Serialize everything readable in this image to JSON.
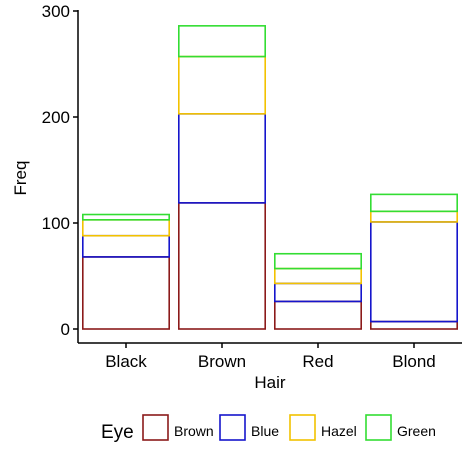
{
  "chart_data": {
    "type": "bar",
    "stacked": true,
    "bar_style": "outlined",
    "categories": [
      "Black",
      "Brown",
      "Red",
      "Blond"
    ],
    "series": [
      {
        "name": "Brown",
        "color": "#8B1A1A",
        "values": [
          68,
          119,
          26,
          7
        ]
      },
      {
        "name": "Blue",
        "color": "#1515CC",
        "values": [
          20,
          84,
          17,
          94
        ]
      },
      {
        "name": "Hazel",
        "color": "#F2C200",
        "values": [
          15,
          54,
          14,
          10
        ]
      },
      {
        "name": "Green",
        "color": "#33DD33",
        "values": [
          5,
          29,
          14,
          16
        ]
      }
    ],
    "xlabel": "Hair",
    "ylabel": "Freq",
    "ylim": [
      0,
      300
    ],
    "yticks": [
      0,
      100,
      200,
      300
    ],
    "grid": false,
    "legend": {
      "title": "Eye",
      "position": "bottom"
    }
  }
}
